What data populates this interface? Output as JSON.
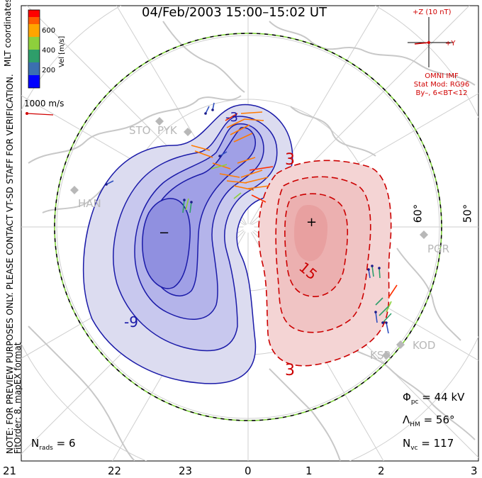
{
  "title": "04/Feb/2003 15:00–15:02 UT",
  "imf": {
    "scale_label": "+Z (10 nT)",
    "y_label": "+Y",
    "source": "OMNI IMF",
    "stat_mod": "Stat Mod: RG96",
    "condition": "By–, 6<BT<12"
  },
  "velocity_scale_label": "1000 m/s",
  "colorbar": {
    "label": "Vel [m/s]",
    "ticks": [
      "600",
      "400",
      "200"
    ],
    "colors": [
      "#0000ff",
      "#3b6fb0",
      "#2e9e6a",
      "#8ecf3c",
      "#ffa500",
      "#ff5a00",
      "#ff0000"
    ]
  },
  "side_labels": {
    "mlt_coordinates": "MLT coordinates",
    "note": "NOTE: FOR PREVIEW PURPOSES ONLY. PLEASE CONTACT VT-SD STAFF FOR VERIFICATION.",
    "fitorder": "FitOrder: 8, mapEX format"
  },
  "mlt_ticks": [
    "21",
    "22",
    "23",
    "0",
    "1",
    "2",
    "3"
  ],
  "latitude_labels": [
    "60°",
    "50°"
  ],
  "stations": [
    "STO",
    "PYK",
    "HAN",
    "PGR",
    "KSR",
    "KOD"
  ],
  "contour_labels": {
    "neg_9": "-9",
    "neg_3": "-3",
    "pos_15": "15",
    "pos_3a": "3",
    "pos_3b": "3"
  },
  "symbols": {
    "minimum": "−",
    "maximum": "+"
  },
  "stats": {
    "phi_symbol": "Φ",
    "phi_sub": "pc",
    "phi_value": "= 44 kV",
    "lambda_symbol": "Λ",
    "lambda_sub": "HM",
    "lambda_value": "= 56°",
    "nvc_symbol": "N",
    "nvc_sub": "vc",
    "nvc_value": "= 117",
    "nrads_symbol": "N",
    "nrads_sub": "rads",
    "nrads_value": "= 6"
  },
  "colors": {
    "negative_contour": "#1a1aa8",
    "positive_contour": "#cc0000",
    "negative_fill": "#dcdcf0",
    "positive_fill": "#f4d4d4",
    "boundary_dash": "#7fd03c",
    "land": "#c8c8c8"
  }
}
